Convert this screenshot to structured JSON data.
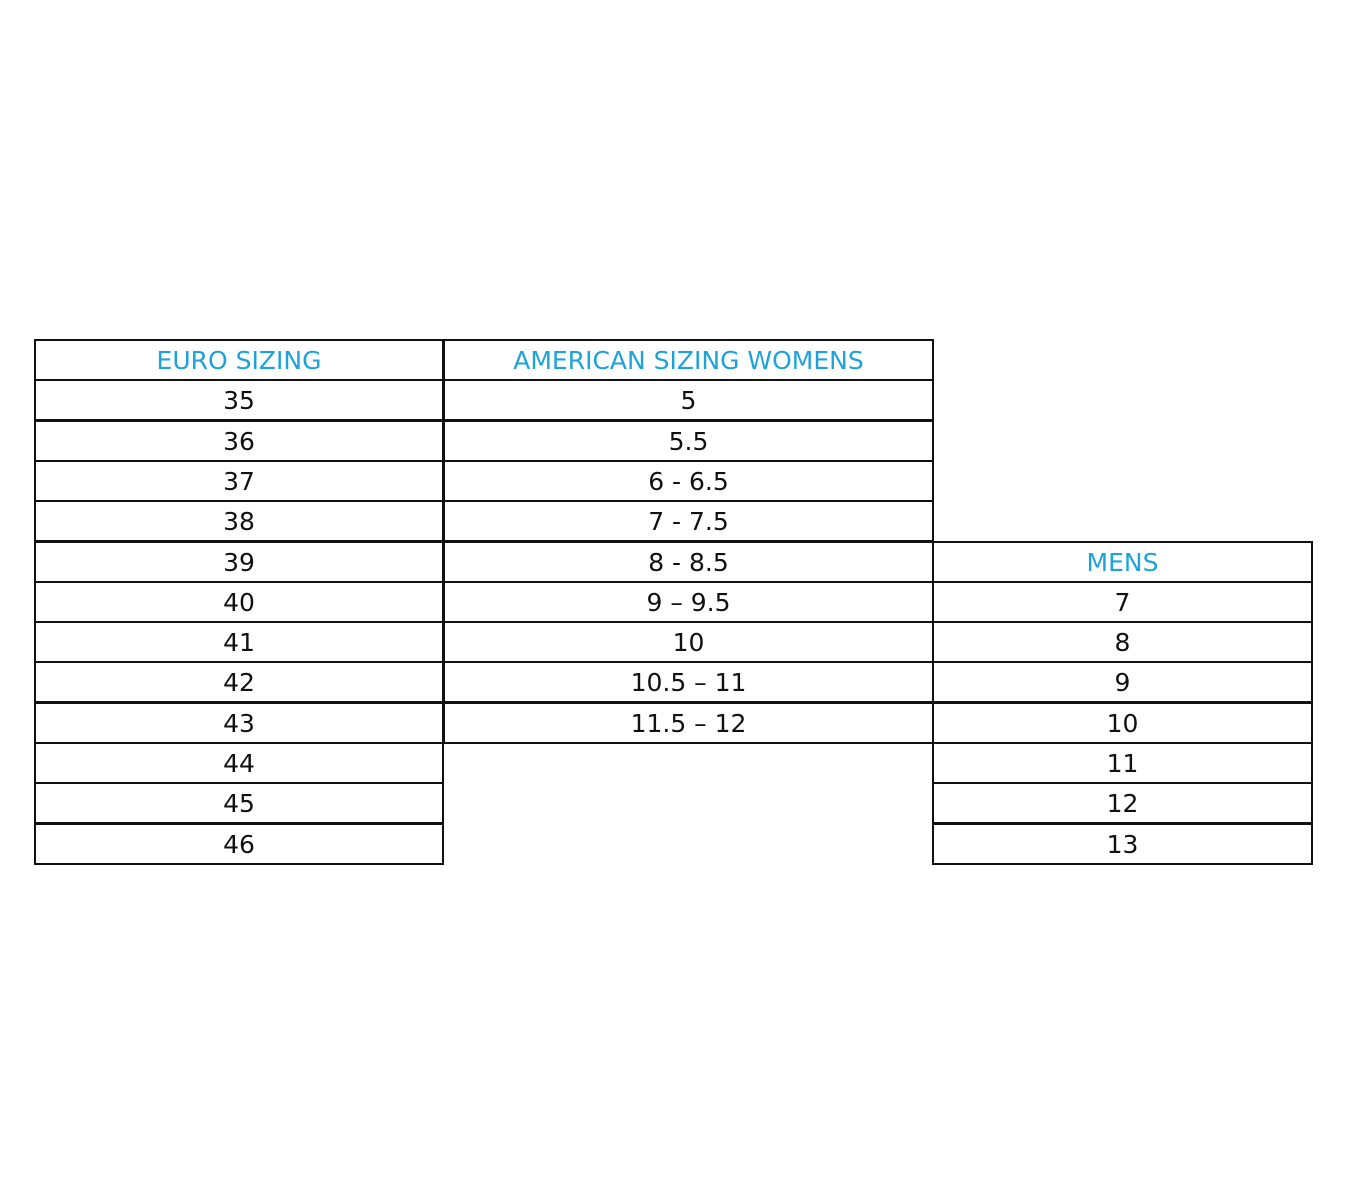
{
  "table": {
    "headers": [
      "EURO SIZING",
      "AMERICAN SIZING WOMENS",
      "MENS"
    ],
    "euro": [
      "35",
      "36",
      "37",
      "38",
      "39",
      "40",
      "41",
      "42",
      "43",
      "44",
      "45",
      "46"
    ],
    "womens": [
      "5",
      "5.5",
      "6 - 6.5",
      "7 - 7.5",
      "8 - 8.5",
      "9 – 9.5",
      "10",
      "10.5 – 11",
      "11.5 – 12"
    ],
    "mens": [
      "7",
      "8",
      "9",
      "10",
      "11",
      "12",
      "13"
    ]
  }
}
